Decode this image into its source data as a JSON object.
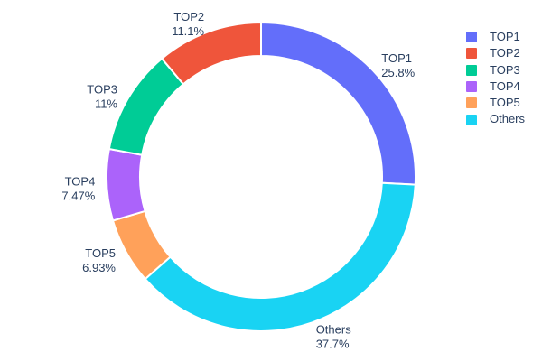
{
  "chart_data": {
    "type": "pie",
    "title": "",
    "hole_ratio": 0.784,
    "start_angle_deg": 0,
    "direction": "clockwise",
    "label_position": "outside",
    "legend_position": "right",
    "slices": [
      {
        "label": "TOP1",
        "pct": 25.8,
        "pct_text": "25.8%",
        "color": "#636efa"
      },
      {
        "label": "Others",
        "pct": 37.7,
        "pct_text": "37.7%",
        "color": "#19d3f3"
      },
      {
        "label": "TOP5",
        "pct": 6.93,
        "pct_text": "6.93%",
        "color": "#ffa15a"
      },
      {
        "label": "TOP4",
        "pct": 7.47,
        "pct_text": "7.47%",
        "color": "#ab63fa"
      },
      {
        "label": "TOP3",
        "pct": 11,
        "pct_text": "11%",
        "color": "#00cc96"
      },
      {
        "label": "TOP2",
        "pct": 11.1,
        "pct_text": "11.1%",
        "color": "#ef553b"
      }
    ],
    "legend_order": [
      "TOP1",
      "TOP2",
      "TOP3",
      "TOP4",
      "TOP5",
      "Others"
    ],
    "colors": {
      "background": "#ffffff",
      "label_text": "#2a3f5f",
      "slice_separator": "#ffffff"
    }
  }
}
